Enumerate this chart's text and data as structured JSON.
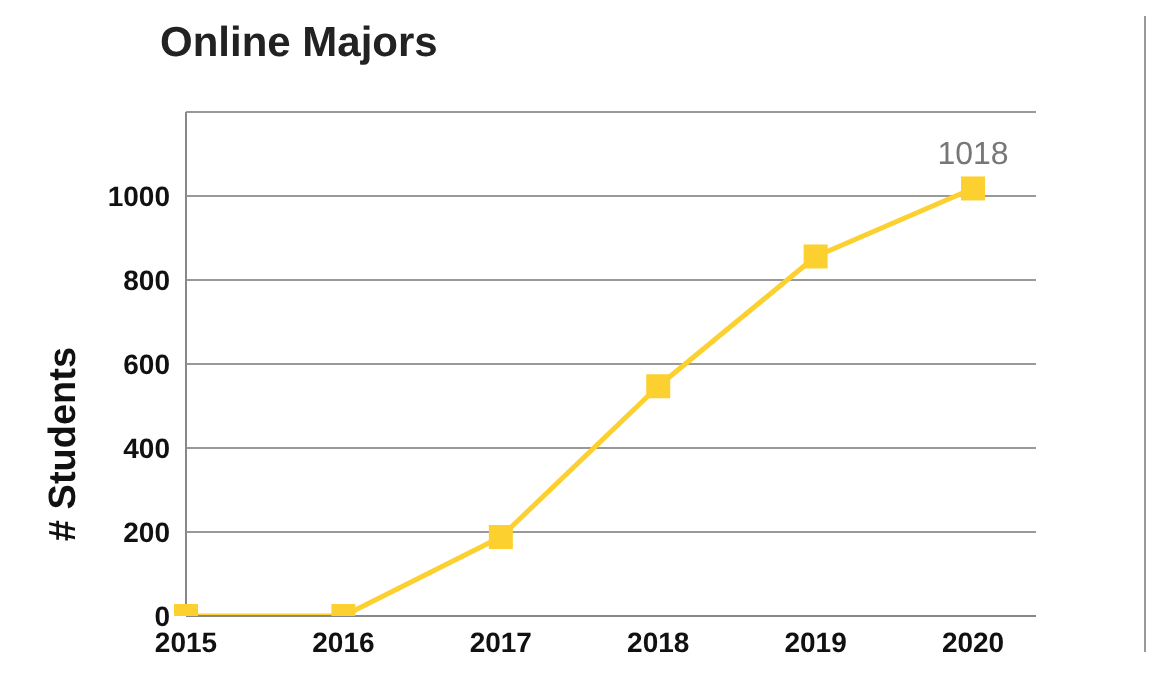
{
  "chart_data": {
    "type": "line",
    "title": "Online Majors",
    "ylabel": "# Students",
    "x": [
      2015,
      2016,
      2017,
      2018,
      2019,
      2020
    ],
    "series": [
      {
        "color": "#fcd02f",
        "values": [
          0,
          0,
          188,
          547,
          856,
          1018
        ],
        "value_labels": [
          null,
          null,
          null,
          null,
          null,
          "1018"
        ]
      }
    ],
    "xlim": [
      2015,
      2020.4
    ],
    "xticks": [
      2015,
      2016,
      2017,
      2018,
      2019,
      2020
    ],
    "ylim": [
      0,
      1200
    ],
    "yticks": [
      0,
      200,
      400,
      600,
      800,
      1000,
      {
        "value": 1200,
        "label": null
      }
    ],
    "grid": "y",
    "marker": "square",
    "line_style": "solid"
  }
}
